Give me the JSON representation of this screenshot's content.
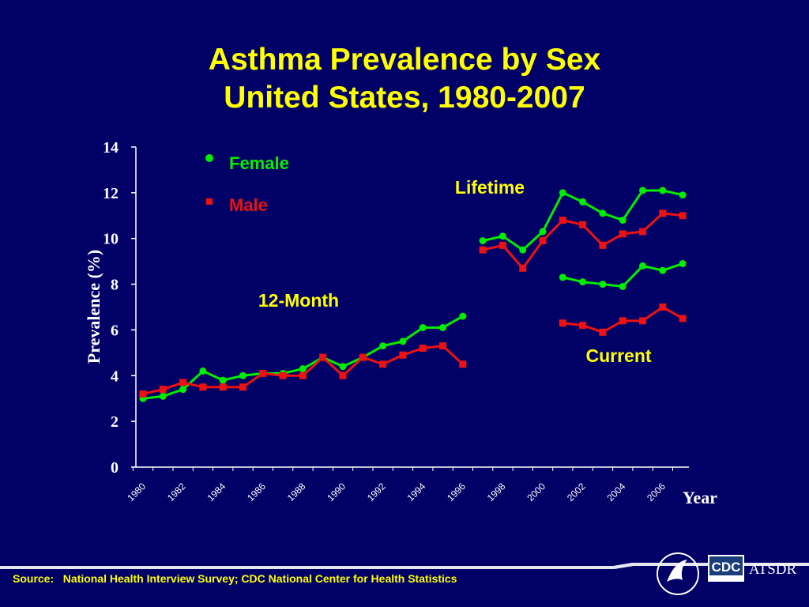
{
  "title_line1": "Asthma Prevalence by Sex",
  "title_line2": "United States, 1980-2007",
  "source_label": "Source:",
  "source_text": "National Health Interview Survey; CDC National Center for Health Statistics",
  "logos": {
    "cdc": "CDC",
    "atsdr": "ATSDR"
  },
  "colors": {
    "background": "#000066",
    "title": "#ffff00",
    "female": "#00ee00",
    "male": "#ee1111",
    "axis": "#ffffff",
    "annotation": "#ffff00"
  },
  "chart_data": {
    "type": "line",
    "xlabel": "Year",
    "ylabel": "Prevalence (%)",
    "ylim": [
      0,
      14
    ],
    "xlim": [
      1980,
      2007
    ],
    "yticks": [
      "0",
      "2",
      "4",
      "6",
      "8",
      "10",
      "12",
      "14"
    ],
    "xticks": [
      "1980",
      "1982",
      "1984",
      "1986",
      "1988",
      "1990",
      "1992",
      "1994",
      "1996",
      "1998",
      "2000",
      "2002",
      "2004",
      "2006"
    ],
    "legend": {
      "position": "top-left",
      "entries": [
        "Female",
        "Male"
      ]
    },
    "annotations": [
      "Lifetime",
      "12-Month",
      "Current"
    ],
    "series": [
      {
        "name": "Female",
        "group": "12-Month",
        "marker": "circle",
        "x": [
          1980,
          1981,
          1982,
          1983,
          1984,
          1985,
          1986,
          1987,
          1988,
          1989,
          1990,
          1991,
          1992,
          1993,
          1994,
          1995,
          1996
        ],
        "y": [
          3.0,
          3.1,
          3.4,
          4.2,
          3.8,
          4.0,
          4.1,
          4.1,
          4.3,
          4.8,
          4.4,
          4.8,
          5.3,
          5.5,
          6.1,
          6.1,
          6.6
        ]
      },
      {
        "name": "Male",
        "group": "12-Month",
        "marker": "square",
        "x": [
          1980,
          1981,
          1982,
          1983,
          1984,
          1985,
          1986,
          1987,
          1988,
          1989,
          1990,
          1991,
          1992,
          1993,
          1994,
          1995,
          1996
        ],
        "y": [
          3.2,
          3.4,
          3.7,
          3.5,
          3.5,
          3.5,
          4.1,
          4.0,
          4.0,
          4.8,
          4.0,
          4.8,
          4.5,
          4.9,
          5.2,
          5.3,
          4.5
        ]
      },
      {
        "name": "Female",
        "group": "Lifetime",
        "marker": "circle",
        "x": [
          1997,
          1998,
          1999,
          2000,
          2001,
          2002,
          2003,
          2004,
          2005,
          2006,
          2007
        ],
        "y": [
          9.9,
          10.1,
          9.5,
          10.3,
          12.0,
          11.6,
          11.1,
          10.8,
          12.1,
          12.1,
          11.9
        ]
      },
      {
        "name": "Male",
        "group": "Lifetime",
        "marker": "square",
        "x": [
          1997,
          1998,
          1999,
          2000,
          2001,
          2002,
          2003,
          2004,
          2005,
          2006,
          2007
        ],
        "y": [
          9.5,
          9.7,
          8.7,
          9.9,
          10.8,
          10.6,
          9.7,
          10.2,
          10.3,
          11.1,
          11.0
        ]
      },
      {
        "name": "Female",
        "group": "Current",
        "marker": "circle",
        "x": [
          2001,
          2002,
          2003,
          2004,
          2005,
          2006,
          2007
        ],
        "y": [
          8.3,
          8.1,
          8.0,
          7.9,
          8.8,
          8.6,
          8.9
        ]
      },
      {
        "name": "Male",
        "group": "Current",
        "marker": "square",
        "x": [
          2001,
          2002,
          2003,
          2004,
          2005,
          2006,
          2007
        ],
        "y": [
          6.3,
          6.2,
          5.9,
          6.4,
          6.4,
          7.0,
          6.5
        ]
      }
    ]
  }
}
